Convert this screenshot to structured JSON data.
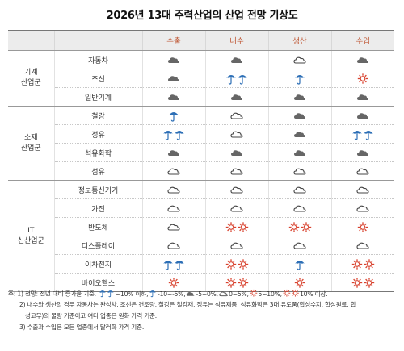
{
  "title": "2026년 13대 주력산업의 산업 전망 기상도",
  "headers": {
    "group": "",
    "industry": "",
    "columns": [
      "수출",
      "내수",
      "생산",
      "수입"
    ]
  },
  "groups": [
    {
      "name_lines": [
        "기계",
        "산업군"
      ],
      "rows": [
        {
          "industry": "자동차",
          "values": [
            "cloud",
            "cloud",
            "cloud-outline",
            "cloud"
          ]
        },
        {
          "industry": "조선",
          "values": [
            "cloud",
            "umbrella2",
            "umbrella",
            "sun"
          ]
        },
        {
          "industry": "일반기계",
          "values": [
            "cloud",
            "cloud",
            "cloud",
            "cloud"
          ]
        }
      ]
    },
    {
      "name_lines": [
        "소재",
        "산업군"
      ],
      "rows": [
        {
          "industry": "철강",
          "values": [
            "umbrella",
            "cloud-outline",
            "cloud",
            "cloud"
          ]
        },
        {
          "industry": "정유",
          "values": [
            "umbrella2",
            "cloud-outline",
            "cloud",
            "umbrella2"
          ]
        },
        {
          "industry": "석유화학",
          "values": [
            "cloud",
            "cloud",
            "cloud",
            "cloud"
          ]
        },
        {
          "industry": "섬유",
          "values": [
            "cloud-outline",
            "cloud-outline",
            "cloud-outline",
            "cloud-outline"
          ]
        }
      ]
    },
    {
      "name_lines": [
        "IT",
        "신산업군"
      ],
      "rows": [
        {
          "industry": "정보통신기기",
          "values": [
            "cloud-outline",
            "cloud-outline",
            "cloud-outline",
            "cloud-outline"
          ]
        },
        {
          "industry": "가전",
          "values": [
            "cloud-outline",
            "cloud-outline",
            "cloud-outline",
            "cloud-outline"
          ]
        },
        {
          "industry": "반도체",
          "values": [
            "cloud-outline",
            "sun2",
            "sun2",
            "sun"
          ]
        },
        {
          "industry": "디스플레이",
          "values": [
            "cloud-outline",
            "cloud-outline",
            "cloud-outline",
            "cloud-outline"
          ]
        },
        {
          "industry": "이차전지",
          "values": [
            "umbrella2",
            "sun2",
            "umbrella",
            "sun2"
          ]
        },
        {
          "industry": "바이오헬스",
          "values": [
            "sun",
            "sun2",
            "sun",
            "sun2"
          ]
        }
      ]
    }
  ],
  "notes": {
    "line1_prefix": "주: 1) 전망: 전년 대비 증가율 기준.",
    "legend": [
      {
        "icon": "umbrella2",
        "text": "~10% 이하,"
      },
      {
        "icon": "umbrella",
        "text": "-10~-5%,"
      },
      {
        "icon": "cloud",
        "text": "-5~0%,"
      },
      {
        "icon": "cloud-outline",
        "text": "0~5%,"
      },
      {
        "icon": "sun",
        "text": "5~10%,"
      },
      {
        "icon": "sun2",
        "text": "10% 이상."
      }
    ],
    "line2": "2) 내수와 생산의 경우 자동차는 완성차, 조선은 건조량, 철강은 철강재, 정유는 석유제품, 석유화학은 3대 유도품(합성수지, 합성원료, 합",
    "line3": "성고무)의 물량 기준이고 여타 업종은 원화 가격 기준.",
    "line4": "3) 수출과 수입은 모든 업종에서 달러화 가격 기준."
  },
  "icon_colors": {
    "rain": "#2d6fb6",
    "cloud": "#666666",
    "sun": "#d8422e",
    "header_text": "#c05a38"
  }
}
